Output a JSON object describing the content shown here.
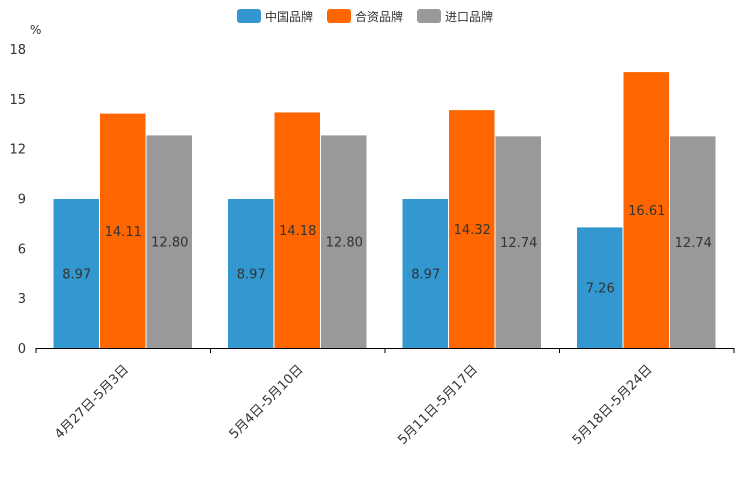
{
  "chart_data": {
    "type": "bar",
    "unit_label": "%",
    "categories": [
      "4月27日-5月3日",
      "5月4日-5月10日",
      "5月11日-5月17日",
      "5月18日-5月24日"
    ],
    "series": [
      {
        "name": "中国品牌",
        "color": "#3398cf",
        "values": [
          8.97,
          8.97,
          8.97,
          7.26
        ],
        "labels": [
          "8.97",
          "8.97",
          "8.97",
          "7.26"
        ]
      },
      {
        "name": "合资品牌",
        "color": "#ff6600",
        "values": [
          14.11,
          14.18,
          14.32,
          16.61
        ],
        "labels": [
          "14.11",
          "14.18",
          "14.32",
          "16.61"
        ]
      },
      {
        "name": "进口品牌",
        "color": "#999999",
        "values": [
          12.8,
          12.8,
          12.74,
          12.74
        ],
        "labels": [
          "12.80",
          "12.80",
          "12.74",
          "12.74"
        ]
      }
    ],
    "ylim": [
      0,
      18
    ],
    "yticks": [
      "0",
      "3",
      "6",
      "9",
      "12",
      "15",
      "18"
    ],
    "legend_position": "top-center",
    "grid": false
  }
}
